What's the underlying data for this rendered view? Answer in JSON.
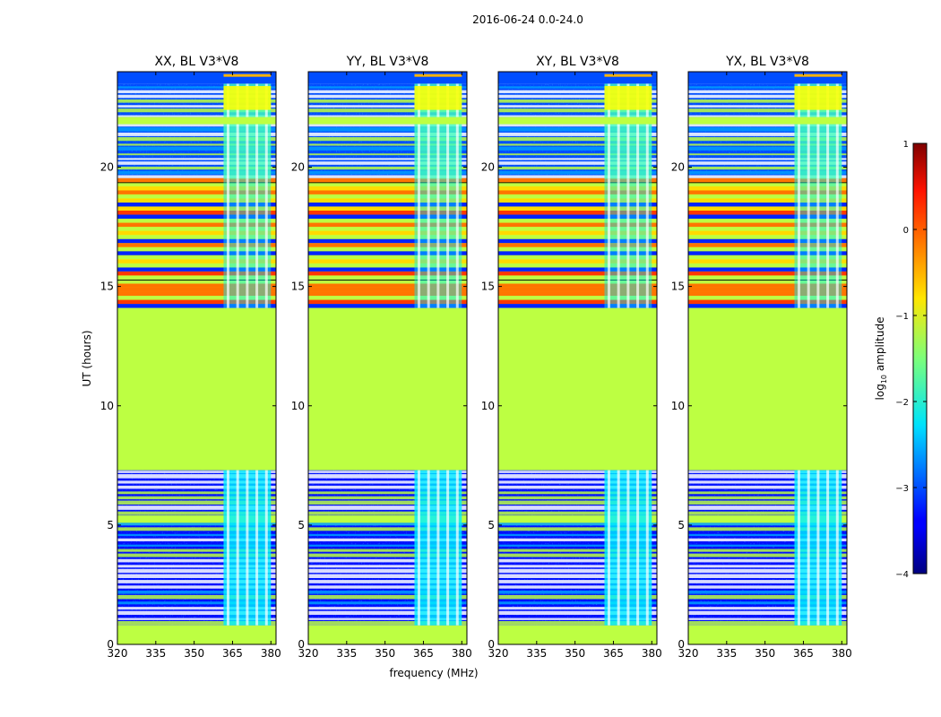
{
  "chart_data": {
    "type": "heatmap",
    "suptitle": "2016-06-24 0.0-24.0",
    "xlabel": "frequency (MHz)",
    "ylabel": "UT (hours)",
    "xlim": [
      320,
      382
    ],
    "ylim": [
      0,
      24
    ],
    "x_ticks": [
      320,
      335,
      350,
      365,
      380
    ],
    "y_ticks": [
      0,
      5,
      10,
      15,
      20
    ],
    "panels": [
      {
        "title": "XX, BL V3*V8",
        "bright_band_mhz": [
          361.5,
          380
        ]
      },
      {
        "title": "YY, BL V3*V8",
        "bright_band_mhz": [
          361.5,
          380
        ]
      },
      {
        "title": "XY, BL V3*V8",
        "bright_band_mhz": [
          361.5,
          380
        ]
      },
      {
        "title": "YX, BL V3*V8",
        "bright_band_mhz": [
          361.5,
          380
        ]
      }
    ],
    "time_regions": [
      {
        "from": 0.0,
        "to": 0.8,
        "state": "flagged",
        "log_amplitude": -1.2
      },
      {
        "from": 0.8,
        "to": 7.3,
        "state": "data",
        "log_amplitude": -3.2
      },
      {
        "from": 5.0,
        "to": 5.4,
        "state": "flagged",
        "log_amplitude": -1.2
      },
      {
        "from": 7.3,
        "to": 14.1,
        "state": "flagged",
        "log_amplitude": -1.2
      },
      {
        "from": 14.1,
        "to": 19.5,
        "state": "striped",
        "log_amplitude": -0.6
      },
      {
        "from": 19.5,
        "to": 24.0,
        "state": "data",
        "log_amplitude": -3.0
      }
    ],
    "colorbar": {
      "label": "log10 amplitude",
      "label_main": "log",
      "label_sub": "10",
      "label_rest": " amplitude",
      "vmin": -4,
      "vmax": 1,
      "ticks": [
        1,
        0,
        -1,
        -2,
        -3,
        -4
      ],
      "tick_labels": [
        "1",
        "0",
        "−1",
        "−2",
        "−3",
        "−4"
      ],
      "colormap": "jet"
    }
  }
}
